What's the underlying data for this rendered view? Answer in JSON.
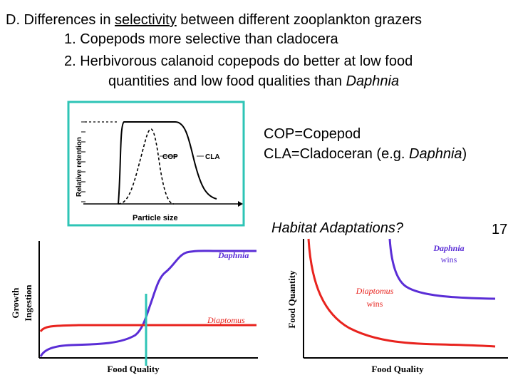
{
  "heading": {
    "prefix": "D. Differences in ",
    "underlined": "selectivity",
    "suffix": " between different zooplankton grazers"
  },
  "points": [
    "1. Copepods more selective than cladocera",
    "2. Herbivorous calanoid copepods do better at low food",
    "quantities and low food qualities than "
  ],
  "points_italic_tail": "Daphnia",
  "legend": {
    "cop": "COP=Copepod",
    "cla_prefix": "CLA=Cladoceran (e.g. ",
    "cla_italic": "Daphnia",
    "cla_suffix": ")"
  },
  "question": "Habitat Adaptations?",
  "slide_number": "17",
  "top_chart": {
    "ylabel": "Relative retention",
    "xlabel": "Particle size",
    "cop_label": "COP",
    "cla_label": "CLA",
    "frame_color": "#2ec4b6"
  },
  "left_chart": {
    "ylabel_line1": "Growth",
    "ylabel_line2": "Ingestion",
    "xlabel": "Food Quality",
    "daphnia_label": "Daphnia",
    "diaptomus_label": "Diaptomus",
    "daphnia_color": "#5a2dd6",
    "diaptomus_color": "#e8231e",
    "marker_color": "#2ec4b6"
  },
  "right_chart": {
    "ylabel": "Food Quantity",
    "xlabel": "Food Quality",
    "daphnia_label": "Daphnia",
    "daphnia_sub": "wins",
    "diaptomus_label": "Diaptomus",
    "diaptomus_sub": "wins"
  }
}
